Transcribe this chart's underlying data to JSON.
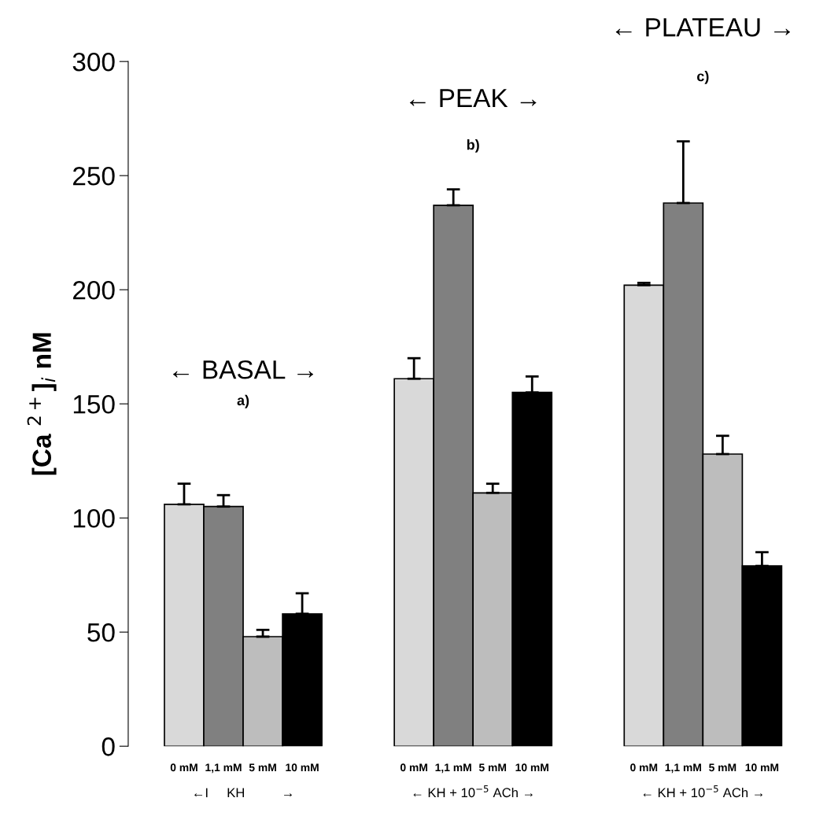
{
  "chart_data": {
    "type": "bar",
    "ylabel": "[Ca $^{2+}$]$_{i}$ nM",
    "categories": [
      "←I     KH          →",
      "← KH + 10$^{−5}$ ACh →",
      "← KH + 10$^{−5}$ ACh →"
    ],
    "series": [
      {
        "name": "0 mM",
        "color": "#d9d9d9",
        "values": [
          106,
          161,
          202
        ],
        "errors": [
          9,
          9,
          1
        ]
      },
      {
        "name": "1,1 mM",
        "color": "#808080",
        "values": [
          105,
          237,
          238
        ],
        "errors": [
          5,
          7,
          27
        ]
      },
      {
        "name": "5 mM",
        "color": "#bdbdbd",
        "values": [
          48,
          111,
          128
        ],
        "errors": [
          3,
          4,
          8
        ]
      },
      {
        "name": "10 mM",
        "color": "#000000",
        "values": [
          58,
          155,
          79
        ],
        "errors": [
          9,
          7,
          6
        ]
      }
    ],
    "ylim": [
      0,
      300
    ],
    "yticks": [
      0,
      50,
      100,
      150,
      200,
      250,
      300
    ],
    "annotations": [
      "← BASAL →",
      "a)",
      "← PEAK →",
      "b)",
      "← PLATEAU →",
      "c)"
    ],
    "grid": false,
    "legend": false
  }
}
